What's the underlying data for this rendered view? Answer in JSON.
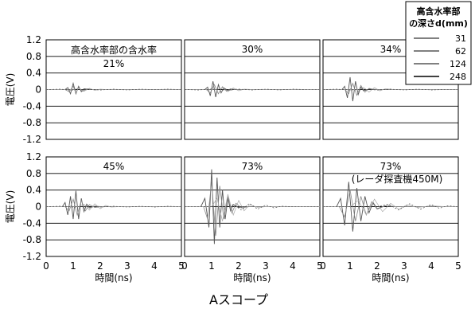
{
  "chart_data": {
    "type": "line",
    "caption": "Aスコープ",
    "xlabel": "時間(ns)",
    "ylabel": "電圧(V)",
    "xlim": [
      0,
      5
    ],
    "ylim": [
      -1.2,
      1.2
    ],
    "xticks": [
      "0",
      "1",
      "2",
      "3",
      "4",
      "5"
    ],
    "yticks": [
      "1.2",
      "0.8",
      "0.4",
      "0",
      "-0.4",
      "-0.8",
      "-1.2"
    ],
    "grid": "horizontal",
    "legend": {
      "title_lines": [
        "高含水率部",
        "の深さd(mm)"
      ],
      "placement": "top-right",
      "entries": [
        "31",
        "62",
        "124",
        "248"
      ]
    },
    "panels": [
      {
        "title": "21%",
        "header": "高含水率部の含水率",
        "series": [
          {
            "name": "31",
            "x": [
              0,
              0.7,
              0.8,
              0.9,
              1.0,
              1.1,
              1.2,
              1.3,
              1.4,
              1.6,
              2.0,
              5.0
            ],
            "y": [
              0,
              0,
              0.05,
              -0.1,
              0.15,
              -0.1,
              0.08,
              -0.05,
              0.02,
              0,
              0,
              0
            ]
          },
          {
            "name": "62",
            "x": [
              0,
              0.7,
              0.85,
              1.0,
              1.1,
              1.2,
              1.35,
              1.5,
              1.7,
              2.0,
              5.0
            ],
            "y": [
              0,
              0,
              -0.05,
              0.08,
              -0.08,
              0.05,
              -0.04,
              0.02,
              0,
              0,
              0
            ]
          },
          {
            "name": "124",
            "x": [
              0,
              1.0,
              1.2,
              1.4,
              1.6,
              1.8,
              2.0,
              2.2,
              2.5,
              5.0
            ],
            "y": [
              0,
              0,
              0.03,
              -0.04,
              0.03,
              -0.02,
              0.01,
              0,
              0,
              0
            ]
          },
          {
            "name": "248",
            "x": [
              0,
              0.5,
              1.0,
              1.5,
              2.0,
              2.5,
              3.0,
              3.5,
              4.0,
              4.5,
              5.0
            ],
            "y": [
              0,
              0.01,
              -0.01,
              0.01,
              -0.01,
              0.01,
              -0.01,
              0.01,
              0,
              0.01,
              0
            ]
          }
        ]
      },
      {
        "title": "30%",
        "series": [
          {
            "name": "31",
            "x": [
              0,
              0.75,
              0.85,
              0.95,
              1.05,
              1.15,
              1.25,
              1.35,
              1.45,
              1.6,
              1.8,
              5.0
            ],
            "y": [
              0,
              0,
              0.06,
              -0.15,
              0.2,
              -0.18,
              0.12,
              -0.08,
              0.04,
              -0.02,
              0,
              0
            ]
          },
          {
            "name": "62",
            "x": [
              0,
              0.8,
              0.95,
              1.1,
              1.25,
              1.4,
              1.55,
              1.7,
              1.9,
              5.0
            ],
            "y": [
              0,
              0,
              -0.08,
              0.12,
              -0.1,
              0.07,
              -0.04,
              0.02,
              0,
              0
            ]
          },
          {
            "name": "124",
            "x": [
              0,
              1.2,
              1.4,
              1.6,
              1.8,
              2.0,
              2.2,
              2.5,
              5.0
            ],
            "y": [
              0,
              0,
              0.04,
              -0.05,
              0.04,
              -0.03,
              0.01,
              0,
              0
            ]
          },
          {
            "name": "248",
            "x": [
              0,
              0.5,
              1.0,
              1.5,
              2.0,
              2.5,
              3.0,
              3.5,
              4.0,
              4.5,
              5.0
            ],
            "y": [
              0,
              -0.01,
              0.01,
              -0.01,
              0.01,
              -0.01,
              0.01,
              -0.01,
              0.01,
              0,
              0
            ]
          }
        ]
      },
      {
        "title": "34%",
        "series": [
          {
            "name": "31",
            "x": [
              0,
              0.7,
              0.8,
              0.9,
              1.0,
              1.1,
              1.2,
              1.3,
              1.4,
              1.5,
              1.7,
              2.0,
              5.0
            ],
            "y": [
              0,
              0,
              0.08,
              -0.2,
              0.3,
              -0.28,
              0.2,
              -0.12,
              0.06,
              -0.03,
              0.01,
              0,
              0
            ]
          },
          {
            "name": "62",
            "x": [
              0,
              0.8,
              0.95,
              1.1,
              1.25,
              1.4,
              1.55,
              1.7,
              1.9,
              5.0
            ],
            "y": [
              0,
              0,
              -0.1,
              0.15,
              -0.14,
              0.1,
              -0.06,
              0.03,
              0,
              0
            ]
          },
          {
            "name": "124",
            "x": [
              0,
              1.3,
              1.5,
              1.7,
              1.9,
              2.1,
              2.3,
              2.6,
              5.0
            ],
            "y": [
              0,
              0,
              0.05,
              -0.06,
              0.05,
              -0.03,
              0.02,
              0,
              0
            ]
          },
          {
            "name": "248",
            "x": [
              0,
              0.5,
              1.0,
              1.5,
              2.0,
              2.5,
              3.0,
              3.5,
              4.0,
              4.5,
              5.0
            ],
            "y": [
              0,
              0.01,
              -0.01,
              0.01,
              -0.01,
              0.01,
              -0.01,
              0.01,
              -0.01,
              0,
              0
            ]
          }
        ]
      },
      {
        "title": "45%",
        "series": [
          {
            "name": "31",
            "x": [
              0,
              0.6,
              0.7,
              0.8,
              0.9,
              1.0,
              1.1,
              1.2,
              1.3,
              1.4,
              1.5,
              1.6,
              1.8,
              2.0,
              5.0
            ],
            "y": [
              0,
              0,
              0.1,
              -0.2,
              0.25,
              -0.3,
              0.38,
              -0.3,
              0.2,
              -0.12,
              0.06,
              -0.03,
              0.01,
              0,
              0
            ]
          },
          {
            "name": "62",
            "x": [
              0,
              0.7,
              0.85,
              1.0,
              1.15,
              1.3,
              1.45,
              1.6,
              1.8,
              2.0,
              5.0
            ],
            "y": [
              0,
              0,
              -0.1,
              0.18,
              -0.2,
              0.15,
              -0.1,
              0.05,
              -0.02,
              0,
              0
            ]
          },
          {
            "name": "124",
            "x": [
              0,
              1.2,
              1.4,
              1.6,
              1.8,
              2.0,
              2.2,
              2.4,
              2.7,
              5.0
            ],
            "y": [
              0,
              0,
              0.06,
              -0.08,
              0.07,
              -0.05,
              0.03,
              -0.01,
              0,
              0
            ]
          },
          {
            "name": "248",
            "x": [
              0,
              0.5,
              1.0,
              1.5,
              2.0,
              2.5,
              3.0,
              3.5,
              4.0,
              4.5,
              5.0
            ],
            "y": [
              0,
              0.01,
              -0.01,
              0.01,
              -0.01,
              0.01,
              -0.01,
              0.01,
              -0.01,
              0.01,
              0
            ]
          }
        ]
      },
      {
        "title": "73%",
        "series": [
          {
            "name": "31",
            "x": [
              0,
              0.6,
              0.75,
              0.9,
              1.0,
              1.1,
              1.2,
              1.3,
              1.4,
              1.5,
              1.6,
              1.7,
              1.8,
              2.0,
              2.2,
              5.0
            ],
            "y": [
              0,
              0,
              0.2,
              -0.5,
              0.9,
              -0.9,
              0.7,
              -0.5,
              0.4,
              -0.3,
              0.2,
              -0.1,
              0.05,
              -0.02,
              0,
              0
            ]
          },
          {
            "name": "62",
            "x": [
              0,
              0.7,
              0.85,
              1.0,
              1.15,
              1.3,
              1.45,
              1.6,
              1.75,
              1.9,
              2.1,
              2.4,
              5.0
            ],
            "y": [
              0,
              0,
              -0.3,
              0.6,
              -0.7,
              0.5,
              -0.3,
              0.25,
              -0.15,
              0.08,
              -0.03,
              0,
              0
            ]
          },
          {
            "name": "124",
            "x": [
              0,
              1.0,
              1.2,
              1.4,
              1.6,
              1.8,
              2.0,
              2.2,
              2.4,
              2.7,
              3.0,
              5.0
            ],
            "y": [
              0,
              0,
              0.2,
              -0.35,
              0.3,
              -0.2,
              0.15,
              -0.1,
              0.05,
              -0.02,
              0,
              0
            ]
          },
          {
            "name": "248",
            "x": [
              0,
              1.5,
              1.8,
              2.1,
              2.4,
              2.7,
              3.0,
              3.3,
              3.6,
              4.0,
              5.0
            ],
            "y": [
              0,
              0,
              0.05,
              -0.08,
              0.08,
              -0.06,
              0.04,
              -0.03,
              0.01,
              0,
              0
            ]
          }
        ]
      },
      {
        "title": "73%",
        "note": "(レーダ探査機450M)",
        "series": [
          {
            "name": "31",
            "x": [
              0,
              0.5,
              0.65,
              0.8,
              0.95,
              1.1,
              1.25,
              1.4,
              1.55,
              1.7,
              1.85,
              2.0,
              2.3,
              2.6,
              5.0
            ],
            "y": [
              0,
              0,
              0.2,
              -0.45,
              0.6,
              -0.6,
              0.45,
              -0.35,
              0.25,
              -0.15,
              0.1,
              -0.05,
              0.02,
              0,
              0
            ]
          },
          {
            "name": "62",
            "x": [
              0,
              0.6,
              0.8,
              1.0,
              1.2,
              1.4,
              1.6,
              1.8,
              2.0,
              2.3,
              2.7,
              5.0
            ],
            "y": [
              0,
              0,
              -0.25,
              0.4,
              -0.35,
              0.25,
              -0.2,
              0.12,
              -0.06,
              0.02,
              0,
              0
            ]
          },
          {
            "name": "124",
            "x": [
              0,
              1.0,
              1.3,
              1.6,
              1.9,
              2.2,
              2.5,
              2.8,
              3.1,
              3.5,
              4.0,
              4.5,
              5.0
            ],
            "y": [
              0,
              0,
              0.15,
              -0.2,
              0.18,
              -0.12,
              0.08,
              -0.06,
              0.04,
              -0.02,
              0.02,
              0,
              0
            ]
          },
          {
            "name": "248",
            "x": [
              0,
              2.0,
              2.4,
              2.8,
              3.2,
              3.6,
              4.0,
              4.3,
              4.6,
              5.0
            ],
            "y": [
              0,
              0,
              0.06,
              -0.08,
              0.07,
              -0.06,
              0.05,
              -0.04,
              0.02,
              0
            ]
          }
        ]
      }
    ]
  }
}
